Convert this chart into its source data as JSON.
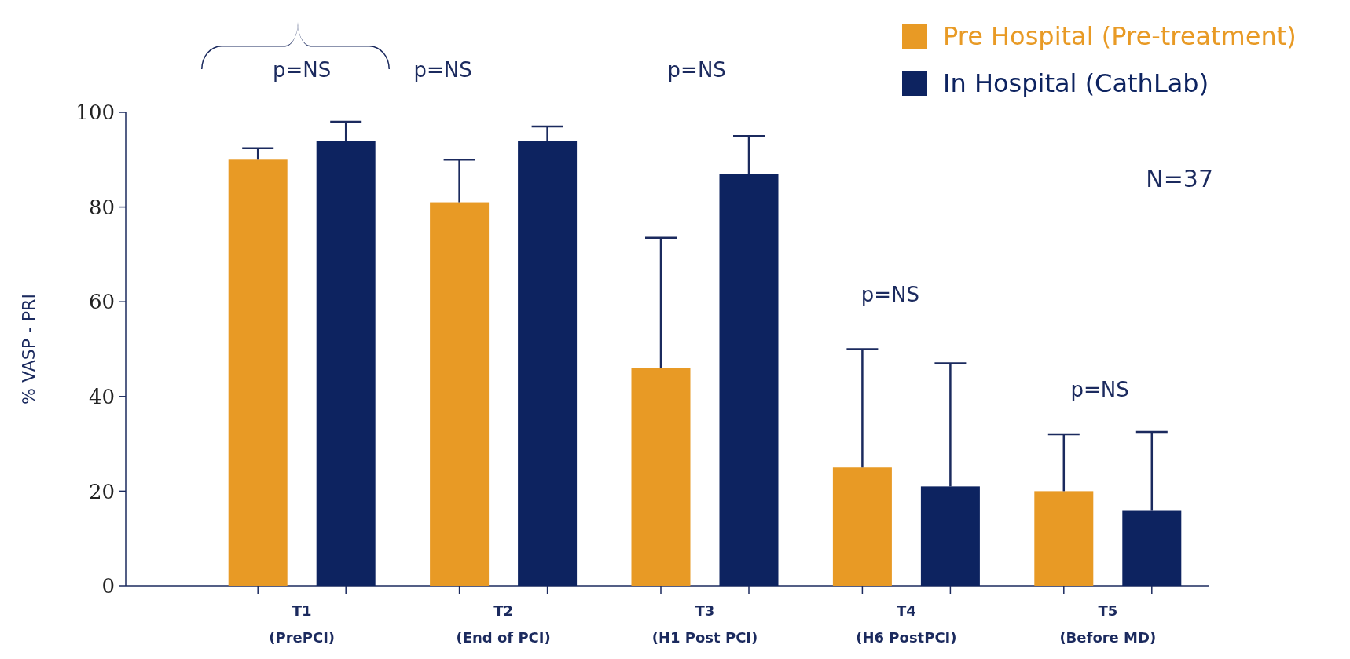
{
  "chart_data": {
    "type": "bar",
    "ylabel": "% VASP - PRI",
    "categories": [
      "T1\n(PrePCI)",
      "T2\n(End of PCI)",
      "T3\n(H1 Post PCI)",
      "T4\n(H6 PostPCI)",
      "T5\n(Before MD)"
    ],
    "series": [
      {
        "name": "Pre Hospital (Pre-treatment)",
        "color": "#e89a25",
        "values": [
          90,
          81,
          46,
          25,
          20
        ],
        "errors": [
          [
            90,
            92.4
          ],
          [
            81,
            90
          ],
          [
            46,
            73.5
          ],
          [
            25,
            50
          ],
          [
            20,
            32
          ]
        ]
      },
      {
        "name": "In Hospital (CathLab)",
        "color": "#0d2360",
        "values": [
          94,
          94,
          87,
          21,
          16
        ],
        "errors": [
          [
            94,
            98
          ],
          [
            94,
            97
          ],
          [
            87,
            95
          ],
          [
            21,
            47
          ],
          [
            16,
            32.5
          ]
        ]
      }
    ],
    "ylim": [
      0,
      100
    ],
    "yticks": [
      0,
      20,
      40,
      60,
      80,
      100
    ],
    "grid": false,
    "legend": "top right",
    "annotations": [
      "p=NS",
      "p=NS",
      "p=NS",
      "p=NS",
      "p=NS",
      "N=37"
    ]
  }
}
